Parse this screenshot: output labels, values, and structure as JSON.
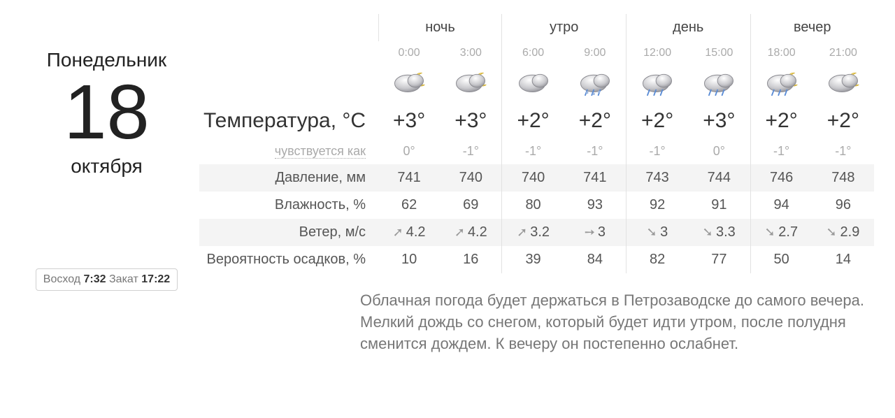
{
  "date": {
    "weekday": "Понедельник",
    "day": "18",
    "month": "октября"
  },
  "sun": {
    "rise_label": "Восход",
    "rise_time": "7:32",
    "set_label": "Закат",
    "set_time": "17:22"
  },
  "periods": [
    "ночь",
    "утро",
    "день",
    "вечер"
  ],
  "hours": [
    "0:00",
    "3:00",
    "6:00",
    "9:00",
    "12:00",
    "15:00",
    "18:00",
    "21:00"
  ],
  "icons": [
    "cloud-night",
    "cloud-night",
    "cloud-day",
    "sleet",
    "rain",
    "rain",
    "rain-night",
    "partly-night"
  ],
  "rows": {
    "temp": {
      "label": "Температура, °C",
      "values": [
        "+3°",
        "+3°",
        "+2°",
        "+2°",
        "+2°",
        "+3°",
        "+2°",
        "+2°"
      ]
    },
    "feels": {
      "label": "чувствуется как",
      "values": [
        "0°",
        "-1°",
        "-1°",
        "-1°",
        "-1°",
        "0°",
        "-1°",
        "-1°"
      ]
    },
    "pressure": {
      "label": "Давление, мм",
      "values": [
        "741",
        "740",
        "740",
        "741",
        "743",
        "744",
        "746",
        "748"
      ]
    },
    "humidity": {
      "label": "Влажность, %",
      "values": [
        "62",
        "69",
        "80",
        "93",
        "92",
        "91",
        "94",
        "96"
      ]
    },
    "wind": {
      "label": "Ветер, м/с",
      "values": [
        "4.2",
        "4.2",
        "3.2",
        "3",
        "3",
        "3.3",
        "2.7",
        "2.9"
      ],
      "dirs_deg": [
        45,
        45,
        45,
        90,
        135,
        135,
        135,
        135
      ]
    },
    "precip": {
      "label": "Вероятность осадков, %",
      "values": [
        "10",
        "16",
        "39",
        "84",
        "82",
        "77",
        "50",
        "14"
      ]
    }
  },
  "forecast_text": "Облачная погода будет держаться в Петрозаводске до самого вечера. Мелкий дождь со снегом, который будет идти утром, после полудня сменится дождем. К вечеру он постепенно ослабнет.",
  "style": {
    "zebra_bg": "#f4f4f4",
    "muted": "#9a9a9a",
    "text": "#333333"
  }
}
